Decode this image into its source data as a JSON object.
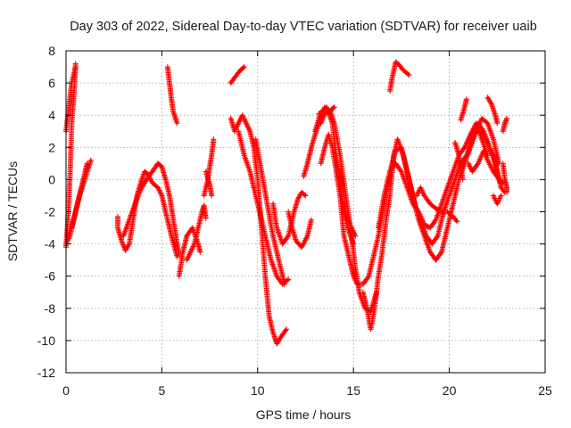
{
  "chart_data": {
    "type": "scatter",
    "title": "Day 303 of 2022, Sidereal Day-to-day VTEC variation (SDTVAR) for receiver uaib",
    "xlabel": "GPS time / hours",
    "ylabel": "SDTVAR / TECUs",
    "xlim": [
      0,
      25
    ],
    "ylim": [
      -12,
      8
    ],
    "xticks": [
      0,
      5,
      10,
      15,
      20,
      25
    ],
    "yticks": [
      -12,
      -10,
      -8,
      -6,
      -4,
      -2,
      0,
      2,
      4,
      6,
      8
    ],
    "grid": true,
    "marker": "+",
    "series_color": "#ff0000",
    "segments": [
      [
        [
          0.0,
          -4.2
        ],
        [
          0.1,
          -2.5
        ],
        [
          0.2,
          0.0
        ],
        [
          0.3,
          3.5
        ],
        [
          0.45,
          6.0
        ],
        [
          0.5,
          7.2
        ]
      ],
      [
        [
          0.0,
          3.0
        ],
        [
          0.15,
          4.5
        ],
        [
          0.3,
          6.0
        ],
        [
          0.5,
          7.0
        ]
      ],
      [
        [
          0.0,
          -4.0
        ],
        [
          0.2,
          -3.5
        ],
        [
          0.4,
          -2.5
        ],
        [
          0.6,
          -1.5
        ],
        [
          0.8,
          -0.5
        ],
        [
          1.0,
          0.5
        ],
        [
          1.1,
          1.0
        ]
      ],
      [
        [
          0.3,
          -3.0
        ],
        [
          0.5,
          -2.0
        ],
        [
          0.7,
          -1.0
        ],
        [
          0.9,
          -0.3
        ],
        [
          1.1,
          0.5
        ],
        [
          1.3,
          1.2
        ]
      ],
      [
        [
          2.7,
          -2.3
        ],
        [
          2.7,
          -3.0
        ],
        [
          2.9,
          -3.8
        ],
        [
          3.1,
          -4.4
        ],
        [
          3.3,
          -4.0
        ],
        [
          3.5,
          -2.5
        ],
        [
          3.7,
          -1.0
        ],
        [
          3.9,
          -0.2
        ],
        [
          4.1,
          0.5
        ],
        [
          4.3,
          0.3
        ],
        [
          4.5,
          -0.2
        ],
        [
          4.8,
          -0.5
        ],
        [
          5.0,
          -1.0
        ],
        [
          5.3,
          -2.5
        ],
        [
          5.5,
          -3.5
        ],
        [
          5.8,
          -4.8
        ]
      ],
      [
        [
          3.0,
          -3.5
        ],
        [
          3.3,
          -2.5
        ],
        [
          3.6,
          -1.5
        ],
        [
          3.9,
          -0.6
        ],
        [
          4.2,
          0.0
        ],
        [
          4.5,
          0.5
        ],
        [
          4.8,
          1.0
        ],
        [
          5.0,
          0.8
        ],
        [
          5.2,
          0.0
        ],
        [
          5.4,
          -1.0
        ],
        [
          5.6,
          -2.5
        ],
        [
          5.8,
          -4.0
        ],
        [
          5.9,
          -4.7
        ]
      ],
      [
        [
          5.3,
          7.0
        ],
        [
          5.4,
          6.0
        ],
        [
          5.5,
          5.0
        ],
        [
          5.6,
          4.2
        ],
        [
          5.8,
          3.5
        ]
      ],
      [
        [
          5.9,
          -6.0
        ],
        [
          6.1,
          -4.5
        ],
        [
          6.3,
          -3.5
        ],
        [
          6.6,
          -3.0
        ],
        [
          6.9,
          -4.0
        ],
        [
          7.0,
          -4.5
        ]
      ],
      [
        [
          6.3,
          -5.0
        ],
        [
          6.5,
          -4.5
        ],
        [
          6.7,
          -4.0
        ],
        [
          6.9,
          -3.0
        ],
        [
          7.1,
          -2.0
        ],
        [
          7.2,
          -1.6
        ],
        [
          7.3,
          -2.4
        ]
      ],
      [
        [
          7.2,
          -1.0
        ],
        [
          7.4,
          0.0
        ],
        [
          7.5,
          0.8
        ],
        [
          7.6,
          1.5
        ],
        [
          7.7,
          2.5
        ]
      ],
      [
        [
          7.3,
          0.5
        ],
        [
          7.5,
          -0.3
        ],
        [
          7.6,
          -1.0
        ]
      ],
      [
        [
          8.6,
          3.8
        ],
        [
          8.8,
          3.0
        ],
        [
          9.0,
          3.5
        ],
        [
          9.2,
          4.0
        ],
        [
          9.4,
          3.5
        ],
        [
          9.6,
          3.0
        ],
        [
          9.8,
          2.0
        ],
        [
          10.0,
          0.0
        ],
        [
          10.2,
          -3.0
        ],
        [
          10.4,
          -6.0
        ],
        [
          10.6,
          -8.5
        ],
        [
          10.8,
          -9.5
        ],
        [
          11.0,
          -10.2
        ],
        [
          11.2,
          -9.8
        ],
        [
          11.5,
          -9.3
        ]
      ],
      [
        [
          8.6,
          6.0
        ],
        [
          8.9,
          6.5
        ],
        [
          9.1,
          6.8
        ],
        [
          9.3,
          7.0
        ]
      ],
      [
        [
          9.0,
          3.0
        ],
        [
          9.3,
          1.5
        ],
        [
          9.6,
          0.5
        ],
        [
          9.8,
          -0.5
        ],
        [
          10.1,
          -2.0
        ],
        [
          10.4,
          -3.5
        ],
        [
          10.7,
          -5.0
        ],
        [
          11.0,
          -6.0
        ],
        [
          11.3,
          -6.5
        ],
        [
          11.6,
          -6.2
        ]
      ],
      [
        [
          9.9,
          2.5
        ],
        [
          10.2,
          0.5
        ],
        [
          10.5,
          -1.5
        ],
        [
          10.8,
          -3.5
        ],
        [
          11.1,
          -5.0
        ],
        [
          11.4,
          -6.5
        ]
      ],
      [
        [
          10.8,
          -1.5
        ],
        [
          11.0,
          -3.0
        ],
        [
          11.3,
          -4.0
        ],
        [
          11.6,
          -3.5
        ],
        [
          11.9,
          -2.0
        ],
        [
          12.1,
          -1.2
        ],
        [
          12.3,
          -0.8
        ],
        [
          12.5,
          -1.0
        ]
      ],
      [
        [
          11.6,
          -2.0
        ],
        [
          11.8,
          -3.0
        ],
        [
          12.0,
          -3.8
        ],
        [
          12.3,
          -4.2
        ],
        [
          12.6,
          -3.5
        ],
        [
          12.8,
          -2.5
        ]
      ],
      [
        [
          12.4,
          0.2
        ],
        [
          12.6,
          1.0
        ],
        [
          12.8,
          2.0
        ],
        [
          13.0,
          2.8
        ],
        [
          13.2,
          3.5
        ],
        [
          13.5,
          4.5
        ],
        [
          13.8,
          4.2
        ],
        [
          14.0,
          3.5
        ],
        [
          14.3,
          1.5
        ],
        [
          14.6,
          -1.0
        ],
        [
          14.9,
          -3.5
        ],
        [
          15.1,
          -5.5
        ],
        [
          15.3,
          -7.0
        ],
        [
          15.6,
          -8.0
        ],
        [
          15.9,
          -8.2
        ],
        [
          16.2,
          -7.0
        ]
      ],
      [
        [
          13.0,
          3.0
        ],
        [
          13.3,
          4.2
        ],
        [
          13.6,
          4.5
        ],
        [
          13.9,
          3.5
        ],
        [
          14.1,
          1.5
        ],
        [
          14.3,
          0.0
        ],
        [
          14.5,
          -2.0
        ],
        [
          14.7,
          -3.0
        ],
        [
          15.0,
          -4.0
        ]
      ],
      [
        [
          13.3,
          1.0
        ],
        [
          13.5,
          2.0
        ],
        [
          13.7,
          2.8
        ],
        [
          13.9,
          2.0
        ],
        [
          14.1,
          0.5
        ],
        [
          14.3,
          -1.0
        ],
        [
          14.5,
          -3.5
        ],
        [
          14.8,
          -5.0
        ],
        [
          15.0,
          -6.0
        ],
        [
          15.2,
          -6.5
        ],
        [
          15.5,
          -6.5
        ],
        [
          15.8,
          -6.0
        ],
        [
          16.0,
          -5.0
        ]
      ],
      [
        [
          13.2,
          4.1
        ],
        [
          13.3,
          3.5
        ],
        [
          13.5,
          4.1
        ],
        [
          13.8,
          4.3
        ],
        [
          14.0,
          4.5
        ]
      ],
      [
        [
          14.5,
          -1.5
        ],
        [
          14.7,
          -2.5
        ],
        [
          14.9,
          -3.0
        ],
        [
          15.1,
          -3.5
        ]
      ],
      [
        [
          15.5,
          -7.0
        ],
        [
          15.7,
          -8.0
        ],
        [
          15.9,
          -9.3
        ],
        [
          16.1,
          -8.0
        ],
        [
          16.3,
          -6.0
        ],
        [
          16.5,
          -4.5
        ],
        [
          16.7,
          -2.5
        ],
        [
          16.9,
          -1.0
        ],
        [
          17.1,
          1.5
        ],
        [
          17.3,
          2.5
        ],
        [
          17.6,
          1.5
        ],
        [
          17.9,
          0.0
        ],
        [
          18.2,
          -1.5
        ],
        [
          18.5,
          -2.5
        ],
        [
          18.8,
          -3.5
        ],
        [
          19.1,
          -4.0
        ],
        [
          19.4,
          -3.5
        ],
        [
          19.7,
          -2.0
        ],
        [
          20.0,
          -1.0
        ],
        [
          20.3,
          0.0
        ],
        [
          20.6,
          1.0
        ],
        [
          20.9,
          1.5
        ],
        [
          21.2,
          2.5
        ],
        [
          21.5,
          3.5
        ],
        [
          21.8,
          3.0
        ],
        [
          22.1,
          2.0
        ],
        [
          22.4,
          1.0
        ],
        [
          22.7,
          -0.5
        ]
      ],
      [
        [
          16.0,
          -5.0
        ],
        [
          16.3,
          -3.5
        ],
        [
          16.6,
          -1.5
        ],
        [
          16.9,
          0.5
        ],
        [
          17.2,
          1.8
        ],
        [
          17.5,
          2.0
        ],
        [
          17.8,
          0.5
        ],
        [
          18.1,
          -1.0
        ],
        [
          18.4,
          -2.5
        ],
        [
          18.7,
          -3.5
        ],
        [
          19.0,
          -4.5
        ],
        [
          19.3,
          -5.0
        ],
        [
          19.6,
          -4.5
        ],
        [
          19.9,
          -3.0
        ],
        [
          20.2,
          -1.5
        ],
        [
          20.5,
          0.0
        ],
        [
          20.8,
          1.0
        ],
        [
          21.1,
          2.0
        ],
        [
          21.4,
          3.0
        ],
        [
          21.7,
          3.8
        ],
        [
          22.0,
          3.5
        ],
        [
          22.3,
          2.5
        ],
        [
          22.6,
          1.0
        ]
      ],
      [
        [
          16.3,
          -3.0
        ],
        [
          16.6,
          -1.0
        ],
        [
          16.9,
          0.5
        ],
        [
          17.2,
          1.0
        ],
        [
          17.5,
          0.5
        ],
        [
          17.8,
          -0.5
        ],
        [
          18.1,
          -1.5
        ],
        [
          18.4,
          -2.0
        ],
        [
          18.7,
          -2.8
        ],
        [
          19.0,
          -3.0
        ],
        [
          19.3,
          -2.5
        ],
        [
          19.6,
          -1.5
        ],
        [
          19.9,
          -0.5
        ],
        [
          20.2,
          0.5
        ],
        [
          20.5,
          1.5
        ],
        [
          20.8,
          2.0
        ],
        [
          21.1,
          2.8
        ],
        [
          21.4,
          3.5
        ],
        [
          21.7,
          2.5
        ],
        [
          22.0,
          1.5
        ]
      ],
      [
        [
          16.9,
          5.5
        ],
        [
          17.0,
          6.2
        ],
        [
          17.2,
          7.3
        ],
        [
          17.4,
          7.1
        ],
        [
          17.6,
          6.8
        ],
        [
          17.9,
          6.5
        ]
      ],
      [
        [
          18.3,
          -1.0
        ],
        [
          18.5,
          -0.5
        ],
        [
          18.7,
          -1.0
        ],
        [
          19.0,
          -1.5
        ],
        [
          19.3,
          -1.8
        ],
        [
          19.6,
          -2.0
        ],
        [
          19.9,
          -2.0
        ],
        [
          20.2,
          -2.3
        ],
        [
          20.4,
          -2.6
        ]
      ],
      [
        [
          20.3,
          2.3
        ],
        [
          20.5,
          1.5
        ],
        [
          20.6,
          0.8
        ],
        [
          20.7,
          0.0
        ]
      ],
      [
        [
          20.6,
          3.7
        ],
        [
          20.8,
          4.5
        ],
        [
          20.9,
          5.0
        ]
      ],
      [
        [
          21.0,
          1.0
        ],
        [
          21.2,
          0.5
        ],
        [
          21.5,
          1.0
        ],
        [
          21.8,
          1.8
        ],
        [
          22.0,
          1.2
        ],
        [
          22.3,
          0.5
        ],
        [
          22.6,
          0.0
        ],
        [
          22.8,
          -0.2
        ]
      ],
      [
        [
          21.6,
          3.0
        ],
        [
          21.9,
          2.5
        ],
        [
          22.1,
          2.0
        ],
        [
          22.3,
          1.5
        ],
        [
          22.5,
          0.5
        ],
        [
          22.7,
          -0.5
        ],
        [
          22.9,
          -0.8
        ]
      ],
      [
        [
          22.0,
          5.1
        ],
        [
          22.2,
          4.7
        ],
        [
          22.4,
          4.0
        ],
        [
          22.5,
          3.5
        ]
      ],
      [
        [
          22.3,
          -1.0
        ],
        [
          22.5,
          -1.5
        ],
        [
          22.7,
          -1.0
        ]
      ],
      [
        [
          22.8,
          1.0
        ],
        [
          22.9,
          0.0
        ],
        [
          23.0,
          -0.5
        ],
        [
          23.0,
          -0.8
        ]
      ],
      [
        [
          22.8,
          3.0
        ],
        [
          22.9,
          3.5
        ],
        [
          23.0,
          3.8
        ]
      ]
    ]
  }
}
